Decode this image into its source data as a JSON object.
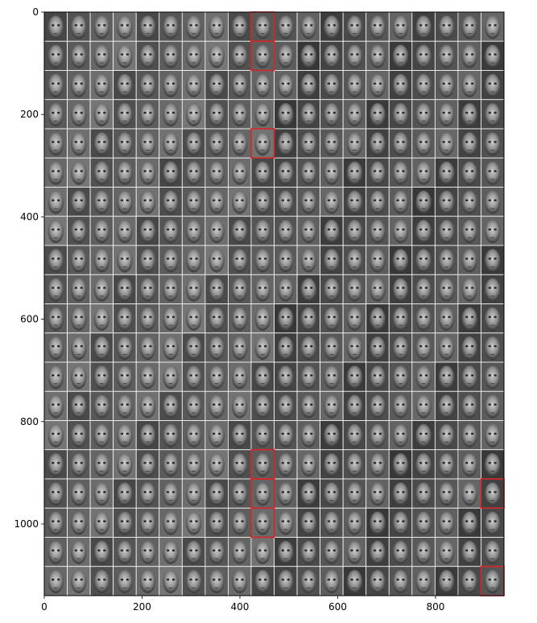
{
  "plot": {
    "x_ticks": [
      {
        "value": 0,
        "label": "0"
      },
      {
        "value": 200,
        "label": "200"
      },
      {
        "value": 400,
        "label": "400"
      },
      {
        "value": 600,
        "label": "600"
      },
      {
        "value": 800,
        "label": "800"
      }
    ],
    "y_ticks": [
      {
        "value": 0,
        "label": "0"
      },
      {
        "value": 200,
        "label": "200"
      },
      {
        "value": 400,
        "label": "400"
      },
      {
        "value": 600,
        "label": "600"
      },
      {
        "value": 800,
        "label": "800"
      },
      {
        "value": 1000,
        "label": "1000"
      }
    ],
    "x_range": [
      0,
      940
    ],
    "y_range": [
      0,
      1140
    ],
    "y_inverted": true,
    "grid": false,
    "image": {
      "description_content": "grayscale face thumbnails",
      "columns": 20,
      "rows": 20,
      "tile_size_data": [
        47,
        57
      ],
      "separator_color": "#ffffff",
      "highlight_color": "#d62728",
      "highlighted_tiles": [
        {
          "row": 0,
          "col": 9
        },
        {
          "row": 1,
          "col": 9
        },
        {
          "row": 4,
          "col": 9
        },
        {
          "row": 15,
          "col": 9
        },
        {
          "row": 16,
          "col": 9
        },
        {
          "row": 17,
          "col": 9
        },
        {
          "row": 16,
          "col": 19
        },
        {
          "row": 19,
          "col": 19
        }
      ]
    }
  }
}
